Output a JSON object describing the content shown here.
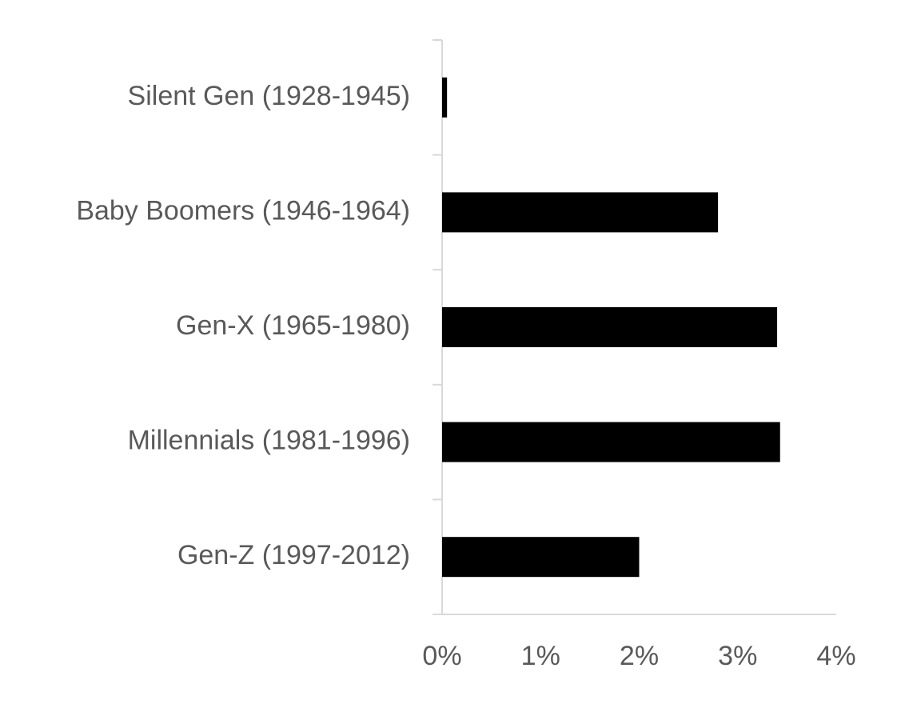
{
  "chart_data": {
    "type": "hbar",
    "categories": [
      "Silent Gen (1928-1945)",
      "Baby Boomers (1946-1964)",
      "Gen-X (1965-1980)",
      "Millennials (1981-1996)",
      "Gen-Z (1997-2012)"
    ],
    "values": [
      0.05,
      2.8,
      3.4,
      3.43,
      2.0
    ],
    "color": "#000000",
    "xlim": [
      0,
      4
    ],
    "xticks": [
      {
        "value": 0,
        "label": "0%"
      },
      {
        "value": 1,
        "label": "1%"
      },
      {
        "value": 2,
        "label": "2%"
      },
      {
        "value": 3,
        "label": "3%"
      },
      {
        "value": 4,
        "label": "4%"
      }
    ],
    "grid": false
  }
}
